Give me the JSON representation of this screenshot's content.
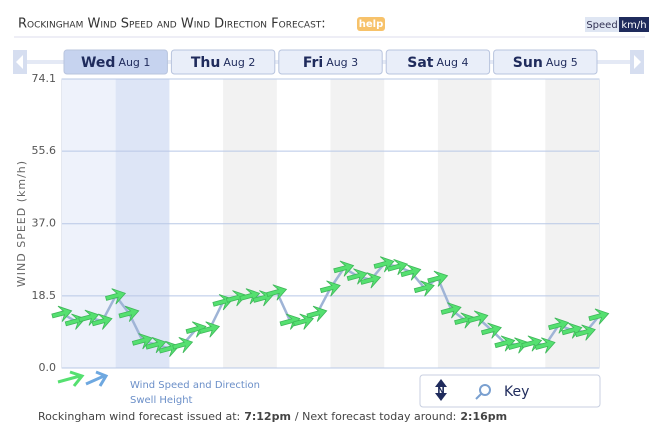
{
  "header": {
    "title": "Rockingham Wind Speed and Wind Direction Forecast:",
    "help": "help",
    "speed": "Speed",
    "unit": "km/h"
  },
  "days": [
    {
      "day": "Wed",
      "date": "Aug 1"
    },
    {
      "day": "Thu",
      "date": "Aug 2"
    },
    {
      "day": "Fri",
      "date": "Aug 3"
    },
    {
      "day": "Sat",
      "date": "Aug 4"
    },
    {
      "day": "Sun",
      "date": "Aug 5"
    }
  ],
  "chart_data": {
    "type": "line",
    "y_label": "WIND SPEED (km/h)",
    "x": [
      0,
      3,
      6,
      9,
      12,
      15,
      18,
      21,
      24,
      27,
      30,
      33,
      36,
      39,
      42,
      45,
      48,
      51,
      54,
      57,
      60,
      63,
      66,
      69,
      72,
      75,
      78,
      81,
      84,
      87,
      90,
      93,
      96,
      99,
      102,
      105,
      108,
      111,
      114,
      117,
      120
    ],
    "xlim": [
      0,
      120
    ],
    "series": [
      {
        "name": "Wind Speed and Direction",
        "color": "#55e070",
        "values": [
          14,
          12,
          13,
          12,
          18.5,
          14,
          7,
          6,
          5,
          6,
          10,
          10,
          17,
          18,
          18.5,
          18,
          19.5,
          12,
          12,
          14,
          20.5,
          25.6,
          23.6,
          22.6,
          26.7,
          26,
          24.6,
          20.5,
          23,
          14.9,
          12.3,
          12.8,
          9.7,
          6.4,
          5.9,
          6.4,
          5.9,
          11,
          9.7,
          9.2,
          13.3
        ]
      }
    ],
    "ylim": [
      0,
      74.1
    ],
    "yticks": [
      {
        "value": 0,
        "label": "0.0"
      },
      18.5,
      {
        "value": 37,
        "label": "37.0"
      },
      55.6,
      74.1
    ],
    "grid": true,
    "line_color": "#9fb4d6"
  },
  "legend": [
    "Wind Speed and Direction",
    "Swell Height"
  ],
  "key": {
    "compass": "N",
    "label": "Key"
  },
  "footer": {
    "issued_label": "Rockingham wind forecast issued at:",
    "issued": "7:12pm",
    "next_label": "/ Next forecast today around:",
    "next": "2:16pm"
  }
}
